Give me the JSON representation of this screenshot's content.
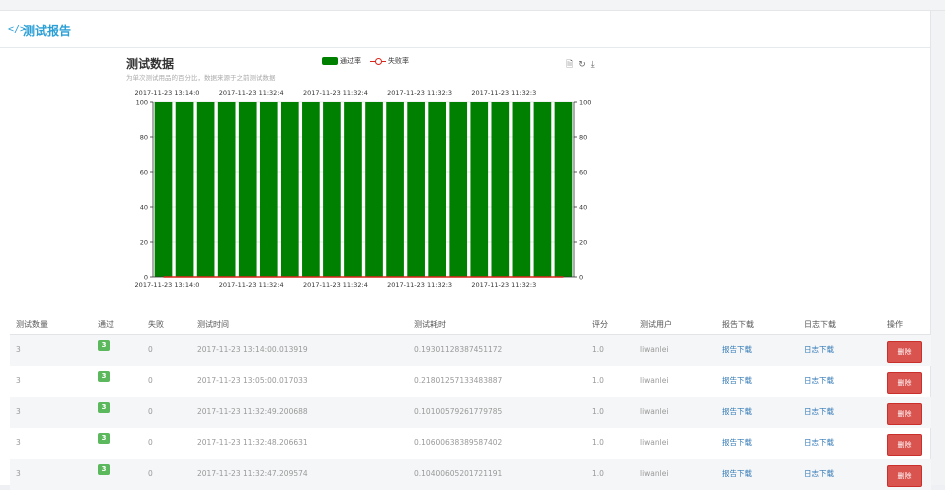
{
  "panel": {
    "title": "测试报告",
    "title_icon": "code-icon"
  },
  "chart": {
    "title": "测试数据",
    "subtitle": "为单次测试用品的百分比，数据来源于之前测试数据",
    "legend": [
      "通过率",
      "失败率"
    ],
    "toolbox": [
      "data-view-icon",
      "restore-icon",
      "save-image-icon"
    ],
    "colors": {
      "pass": "#008000",
      "fail": "#d9261c"
    }
  },
  "chart_data": {
    "type": "bar",
    "title": "测试数据",
    "subtitle": "为单次测试用品的百分比，数据来源于之前测试数据",
    "x_tick_labels": [
      "2017-11-23 13:14:0",
      "2017-11-23 11:32:4",
      "2017-11-23 11:32:4",
      "2017-11-23 11:32:3",
      "2017-11-23 11:32:3"
    ],
    "bar_count": 20,
    "series": [
      {
        "name": "通过率",
        "type": "bar",
        "values": [
          100,
          100,
          100,
          100,
          100,
          100,
          100,
          100,
          100,
          100,
          100,
          100,
          100,
          100,
          100,
          100,
          100,
          100,
          100,
          100
        ]
      },
      {
        "name": "失败率",
        "type": "line",
        "values": [
          0,
          0,
          0,
          0,
          0,
          0,
          0,
          0,
          0,
          0,
          0,
          0,
          0,
          0,
          0,
          0,
          0,
          0,
          0,
          0
        ]
      }
    ],
    "y_ticks": [
      "0",
      "20",
      "40",
      "60",
      "80",
      "100"
    ],
    "ylim": [
      0,
      100
    ],
    "y2_ticks": [
      "0",
      "20",
      "40",
      "60",
      "80",
      "100"
    ],
    "grid": true,
    "legend_position": "top-center"
  },
  "table": {
    "headers": [
      "测试数量",
      "通过",
      "失败",
      "测试时间",
      "测试耗时",
      "评分",
      "测试用户",
      "报告下载",
      "日志下载",
      "操作"
    ],
    "rows": [
      {
        "count": "3",
        "passed": "3",
        "failed": "0",
        "time": "2017-11-23 13:14:00.013919",
        "duration": "0.19301128387451172",
        "score": "1.0",
        "user": "liwanlei",
        "report": "报告下载",
        "log": "日志下载",
        "action": "删除"
      },
      {
        "count": "3",
        "passed": "3",
        "failed": "0",
        "time": "2017-11-23 13:05:00.017033",
        "duration": "0.21801257133483887",
        "score": "1.0",
        "user": "liwanlei",
        "report": "报告下载",
        "log": "日志下载",
        "action": "删除"
      },
      {
        "count": "3",
        "passed": "3",
        "failed": "0",
        "time": "2017-11-23 11:32:49.200688",
        "duration": "0.10100579261779785",
        "score": "1.0",
        "user": "liwanlei",
        "report": "报告下载",
        "log": "日志下载",
        "action": "删除"
      },
      {
        "count": "3",
        "passed": "3",
        "failed": "0",
        "time": "2017-11-23 11:32:48.206631",
        "duration": "0.10600638389587402",
        "score": "1.0",
        "user": "liwanlei",
        "report": "报告下载",
        "log": "日志下载",
        "action": "删除"
      },
      {
        "count": "3",
        "passed": "3",
        "failed": "0",
        "time": "2017-11-23 11:32:47.209574",
        "duration": "0.10400605201721191",
        "score": "1.0",
        "user": "liwanlei",
        "report": "报告下载",
        "log": "日志下载",
        "action": "删除"
      }
    ]
  }
}
